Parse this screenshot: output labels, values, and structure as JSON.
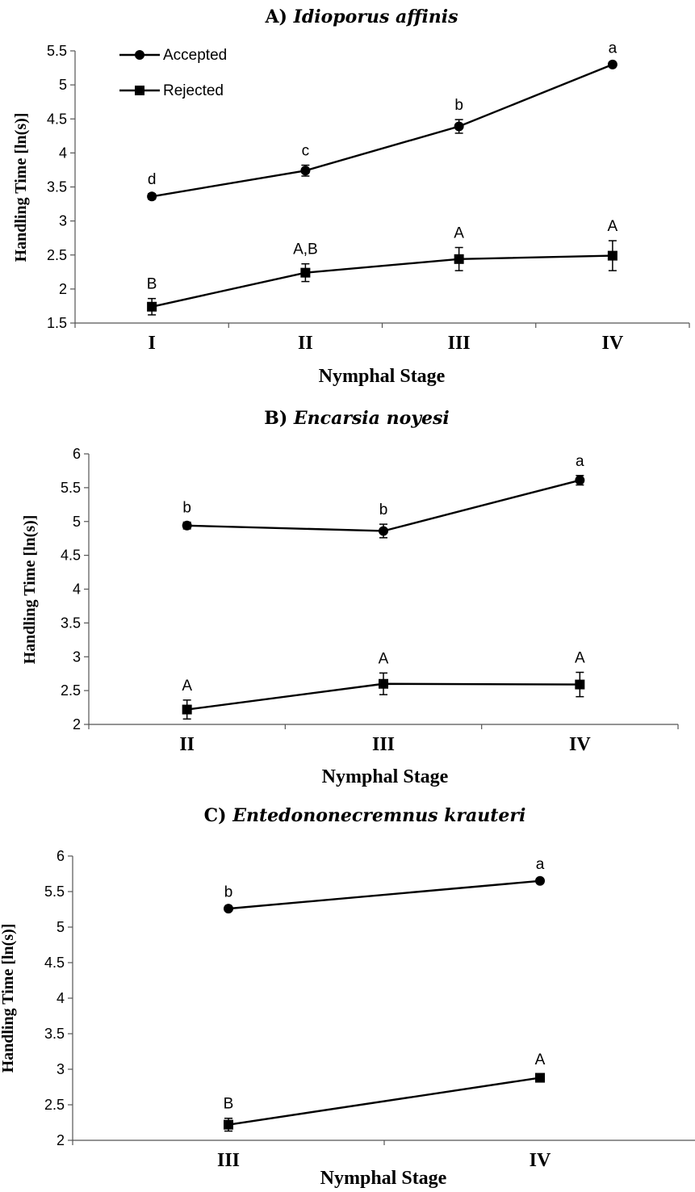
{
  "chart_data": [
    {
      "type": "line",
      "title_prefix": "A)",
      "title": "Idioporus affinis",
      "xlabel": "Nymphal Stage",
      "ylabel": "Handling Time [ln(s)]",
      "categories": [
        "I",
        "II",
        "III",
        "IV"
      ],
      "ylim": [
        1.5,
        5.5
      ],
      "yticks": [
        "1.5",
        "2",
        "2.5",
        "3",
        "3.5",
        "4",
        "4.5",
        "5",
        "5.5"
      ],
      "legend": "top-left",
      "series": [
        {
          "name": "Accepted",
          "marker": "circle",
          "values": [
            3.36,
            3.74,
            4.39,
            5.3
          ],
          "errors": [
            0.04,
            0.08,
            0.1,
            0.03
          ],
          "labels": [
            "d",
            "c",
            "b",
            "a"
          ]
        },
        {
          "name": "Rejected",
          "marker": "square",
          "values": [
            1.74,
            2.24,
            2.44,
            2.49
          ],
          "errors": [
            0.12,
            0.13,
            0.17,
            0.22
          ],
          "labels": [
            "B",
            "A,B",
            "A",
            "A"
          ]
        }
      ]
    },
    {
      "type": "line",
      "title_prefix": "B)",
      "title": "Encarsia noyesi",
      "xlabel": "Nymphal Stage",
      "ylabel": "Handling Time [ln(s)]",
      "categories": [
        "II",
        "III",
        "IV"
      ],
      "ylim": [
        2,
        6
      ],
      "yticks": [
        "2",
        "2.5",
        "3",
        "3.5",
        "4",
        "4.5",
        "5",
        "5.5",
        "6"
      ],
      "series": [
        {
          "name": "",
          "marker": "circle",
          "values": [
            4.94,
            4.86,
            5.61
          ],
          "errors": [
            0.05,
            0.1,
            0.07
          ],
          "labels": [
            "b",
            "b",
            "a"
          ]
        },
        {
          "name": "",
          "marker": "square",
          "values": [
            2.22,
            2.6,
            2.59
          ],
          "errors": [
            0.14,
            0.16,
            0.18
          ],
          "labels": [
            "A",
            "A",
            "A"
          ]
        }
      ]
    },
    {
      "type": "line",
      "title_prefix": "C)",
      "title": "Entedononecremnus krauteri",
      "xlabel": "Nymphal Stage",
      "ylabel": "Handling Time [ln(s)]",
      "categories": [
        "III",
        "IV"
      ],
      "ylim": [
        2,
        6
      ],
      "yticks": [
        "2",
        "2.5",
        "3",
        "3.5",
        "4",
        "4.5",
        "5",
        "5.5",
        "6"
      ],
      "series": [
        {
          "name": "",
          "marker": "circle",
          "values": [
            5.26,
            5.65
          ],
          "errors": [
            0.03,
            0.03
          ],
          "labels": [
            "b",
            "a"
          ]
        },
        {
          "name": "",
          "marker": "square",
          "values": [
            2.22,
            2.88
          ],
          "errors": [
            0.09,
            0.05
          ],
          "labels": [
            "B",
            "A"
          ]
        }
      ]
    }
  ]
}
